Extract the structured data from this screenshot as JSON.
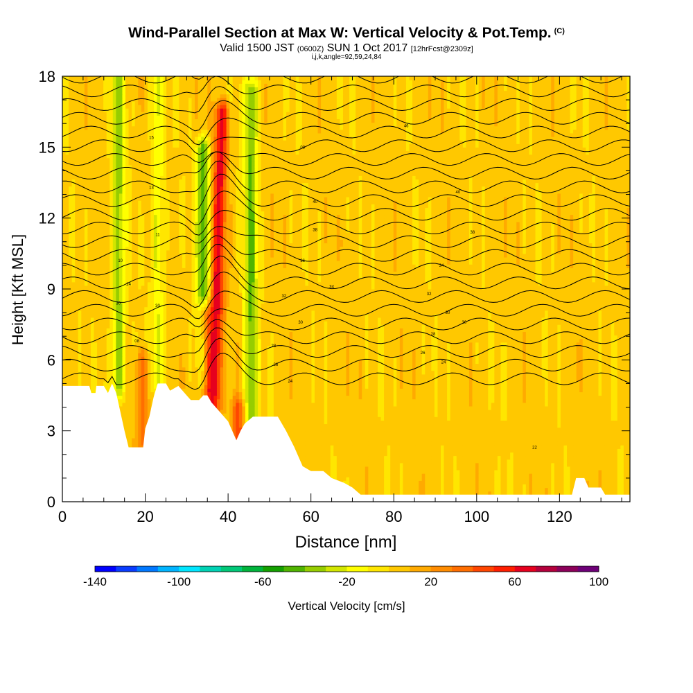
{
  "titles": {
    "main": "Wind-Parallel Section at Max W: Vertical Velocity & Pot.Temp.",
    "copyright": "(C)",
    "valid_prefix": "Valid 1500 JST",
    "valid_zulu": "(0600Z)",
    "valid_date": "SUN 1 Oct 2017",
    "forecast": "[12hrFcst@2309z]",
    "indices": "i,j,k,angle=92,59,24,84"
  },
  "chart_data": {
    "type": "heatmap",
    "title": "Wind-Parallel Section at Max W: Vertical Velocity & Pot.Temp.",
    "xlabel": "Distance [nm]",
    "ylabel": "Height [Kft MSL]",
    "xlim": [
      0,
      137
    ],
    "ylim": [
      0,
      18
    ],
    "x_ticks": [
      0,
      20,
      40,
      60,
      80,
      100,
      120
    ],
    "y_ticks": [
      0,
      3,
      6,
      9,
      12,
      15,
      18
    ],
    "colorbar": {
      "label": "Vertical Velocity [cm/s]",
      "min": -140,
      "max": 100,
      "step": 10,
      "tick_labels": [
        "-140",
        "-100",
        "-60",
        "-20",
        "20",
        "60",
        "100"
      ],
      "colors": [
        "#0000ff",
        "#0a3cff",
        "#0078ff",
        "#00b4ff",
        "#00e6ff",
        "#00d2b4",
        "#00c878",
        "#00b43c",
        "#14a000",
        "#50b400",
        "#96cd00",
        "#d2e600",
        "#ffff00",
        "#ffe600",
        "#ffc800",
        "#ffaa00",
        "#ff8c00",
        "#ff6e00",
        "#ff4600",
        "#ff1e00",
        "#e6001e",
        "#b4003c",
        "#8c005a",
        "#6e0078"
      ]
    },
    "terrain_height_kft": [
      [
        0,
        4.9
      ],
      [
        6.5,
        4.9
      ],
      [
        7,
        4.6
      ],
      [
        8,
        4.6
      ],
      [
        8.2,
        4.9
      ],
      [
        10,
        4.9
      ],
      [
        11,
        4.6
      ],
      [
        12,
        5.0
      ],
      [
        13,
        4.6
      ],
      [
        14,
        3.8
      ],
      [
        15,
        3.0
      ],
      [
        16,
        2.3
      ],
      [
        19.5,
        2.3
      ],
      [
        20,
        3.1
      ],
      [
        21,
        3.6
      ],
      [
        22,
        4.4
      ],
      [
        23,
        5.0
      ],
      [
        25,
        5.0
      ],
      [
        26,
        4.7
      ],
      [
        28,
        4.9
      ],
      [
        30,
        4.5
      ],
      [
        31,
        4.3
      ],
      [
        33,
        4.3
      ],
      [
        34,
        4.5
      ],
      [
        35,
        4.5
      ],
      [
        36,
        4.2
      ],
      [
        38,
        3.8
      ],
      [
        40,
        3.4
      ],
      [
        42,
        2.6
      ],
      [
        43,
        3.0
      ],
      [
        44,
        3.3
      ],
      [
        46,
        3.6
      ],
      [
        52,
        3.6
      ],
      [
        54,
        3.0
      ],
      [
        56,
        2.3
      ],
      [
        58,
        1.5
      ],
      [
        60,
        1.3
      ],
      [
        63,
        1.3
      ],
      [
        65,
        1.0
      ],
      [
        68,
        0.8
      ],
      [
        70,
        0.6
      ],
      [
        72,
        0.3
      ],
      [
        90,
        0.3
      ],
      [
        110,
        0.3
      ],
      [
        123,
        0.3
      ],
      [
        124,
        1.0
      ],
      [
        126,
        1.0
      ],
      [
        127,
        0.6
      ],
      [
        130,
        0.6
      ],
      [
        131,
        0.3
      ],
      [
        137,
        0.3
      ]
    ],
    "updraft_bands": [
      {
        "x": 36.5,
        "y_range": [
          3.5,
          16.5
        ],
        "peak_cm_s": 60,
        "tilt_nm": 2.0
      },
      {
        "x": 34.5,
        "y_range": [
          4.8,
          8.0
        ],
        "peak_cm_s": 60,
        "tilt_nm": 0
      },
      {
        "x": 42.5,
        "y_range": [
          2.6,
          4.0
        ],
        "peak_cm_s": 40,
        "tilt_nm": 0
      },
      {
        "x": 19.5,
        "y_range": [
          2.5,
          6.0
        ],
        "peak_cm_s": 30,
        "tilt_nm": 0
      }
    ],
    "downdraft_bands": [
      {
        "x": 34.0,
        "y_range": [
          5.0,
          15.0
        ],
        "min_cm_s": -50,
        "tilt_nm": 0
      },
      {
        "x": 45.5,
        "y_range": [
          3.3,
          17.5
        ],
        "min_cm_s": -45,
        "tilt_nm": 0
      },
      {
        "x": 13.5,
        "y_range": [
          4.8,
          18.0
        ],
        "min_cm_s": -40,
        "tilt_nm": 0
      },
      {
        "x": 23.0,
        "y_range": [
          5.0,
          18.0
        ],
        "min_cm_s": -25,
        "tilt_nm": 0
      }
    ],
    "theta_contour_labels": [
      {
        "x": 21.5,
        "y": 15.4,
        "text": "15"
      },
      {
        "x": 21.5,
        "y": 13.3,
        "text": "13"
      },
      {
        "x": 23,
        "y": 11.3,
        "text": "11"
      },
      {
        "x": 14,
        "y": 10.2,
        "text": "10"
      },
      {
        "x": 16,
        "y": 9.2,
        "text": "24"
      },
      {
        "x": 13.5,
        "y": 8.4,
        "text": "30"
      },
      {
        "x": 23,
        "y": 8.3,
        "text": "30"
      },
      {
        "x": 18,
        "y": 6.8,
        "text": "08"
      },
      {
        "x": 58,
        "y": 15.0,
        "text": "08"
      },
      {
        "x": 83,
        "y": 15.9,
        "text": "46"
      },
      {
        "x": 61,
        "y": 12.7,
        "text": "40"
      },
      {
        "x": 95.5,
        "y": 13.1,
        "text": "40"
      },
      {
        "x": 61,
        "y": 11.5,
        "text": "38"
      },
      {
        "x": 99,
        "y": 11.4,
        "text": "38"
      },
      {
        "x": 58,
        "y": 10.2,
        "text": "36"
      },
      {
        "x": 91.5,
        "y": 10.0,
        "text": "34"
      },
      {
        "x": 65,
        "y": 9.1,
        "text": "34"
      },
      {
        "x": 88.5,
        "y": 8.8,
        "text": "32"
      },
      {
        "x": 53.5,
        "y": 8.7,
        "text": "32"
      },
      {
        "x": 93,
        "y": 8.0,
        "text": "30"
      },
      {
        "x": 57.5,
        "y": 7.6,
        "text": "30"
      },
      {
        "x": 97,
        "y": 7.6,
        "text": "30"
      },
      {
        "x": 89.5,
        "y": 7.1,
        "text": "28"
      },
      {
        "x": 51,
        "y": 6.6,
        "text": "28"
      },
      {
        "x": 87,
        "y": 6.3,
        "text": "26"
      },
      {
        "x": 51.5,
        "y": 5.8,
        "text": "26"
      },
      {
        "x": 92,
        "y": 5.9,
        "text": "24"
      },
      {
        "x": 55,
        "y": 5.1,
        "text": "24"
      },
      {
        "x": 114,
        "y": 2.3,
        "text": "22"
      }
    ]
  }
}
